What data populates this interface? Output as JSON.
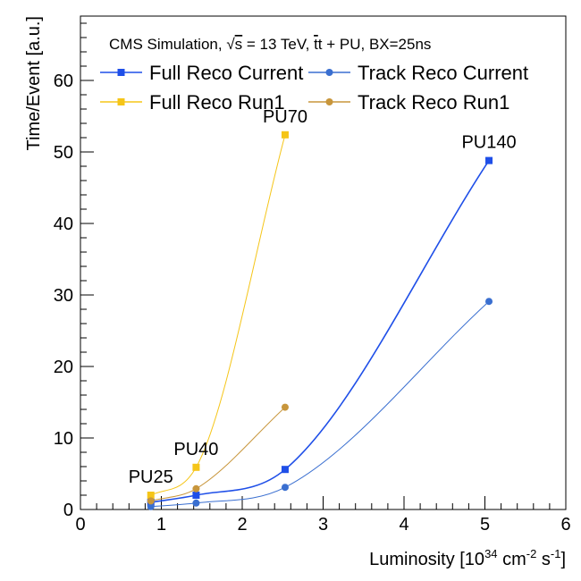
{
  "chart_data": {
    "type": "line",
    "header": {
      "pre": "CMS Simulation, ",
      "sqrt": "√",
      "s": "s",
      "mid": " = 13 TeV, ",
      "tbar": "t",
      "post": "t + PU, BX=25ns"
    },
    "xlabel": {
      "pre": "Luminosity [10",
      "e1": "34",
      "mid": " cm",
      "e2": "-2",
      "mid2": " s",
      "e3": "-1",
      "post": "]"
    },
    "ylabel": "Time/Event [a.u.]",
    "xlim": [
      0,
      6
    ],
    "ylim": [
      0,
      69
    ],
    "x_ticks": [
      "0",
      "1",
      "2",
      "3",
      "4",
      "5",
      "6"
    ],
    "y_ticks": [
      "0",
      "10",
      "20",
      "30",
      "40",
      "50",
      "60"
    ],
    "grid": false,
    "legend_position": "top",
    "annotations": [
      {
        "text": "PU25",
        "x": 0.87
      },
      {
        "text": "PU40",
        "x": 1.43
      },
      {
        "text": "PU70",
        "x": 2.53
      },
      {
        "text": "PU140",
        "x": 5.05
      }
    ],
    "series": [
      {
        "name": "Full Reco Current",
        "color": "#1f4fe8",
        "marker": "square",
        "width": 1.6,
        "points": [
          [
            0.87,
            1.0
          ],
          [
            1.43,
            2.0
          ],
          [
            2.53,
            5.6
          ],
          [
            5.05,
            48.8
          ]
        ]
      },
      {
        "name": "Track Reco Current",
        "color": "#3a6fd0",
        "marker": "circle",
        "width": 1.0,
        "points": [
          [
            0.87,
            0.4
          ],
          [
            1.43,
            0.9
          ],
          [
            2.53,
            3.1
          ],
          [
            5.05,
            29.1
          ]
        ]
      },
      {
        "name": "Full Reco Run1",
        "color": "#f5c518",
        "marker": "square",
        "width": 1.0,
        "points": [
          [
            0.87,
            2.0
          ],
          [
            1.43,
            5.9
          ],
          [
            2.53,
            52.4
          ]
        ]
      },
      {
        "name": "Track Reco Run1",
        "color": "#c8963c",
        "marker": "circle",
        "width": 1.0,
        "points": [
          [
            0.87,
            1.2
          ],
          [
            1.43,
            2.9
          ],
          [
            2.53,
            14.3
          ]
        ]
      }
    ]
  }
}
